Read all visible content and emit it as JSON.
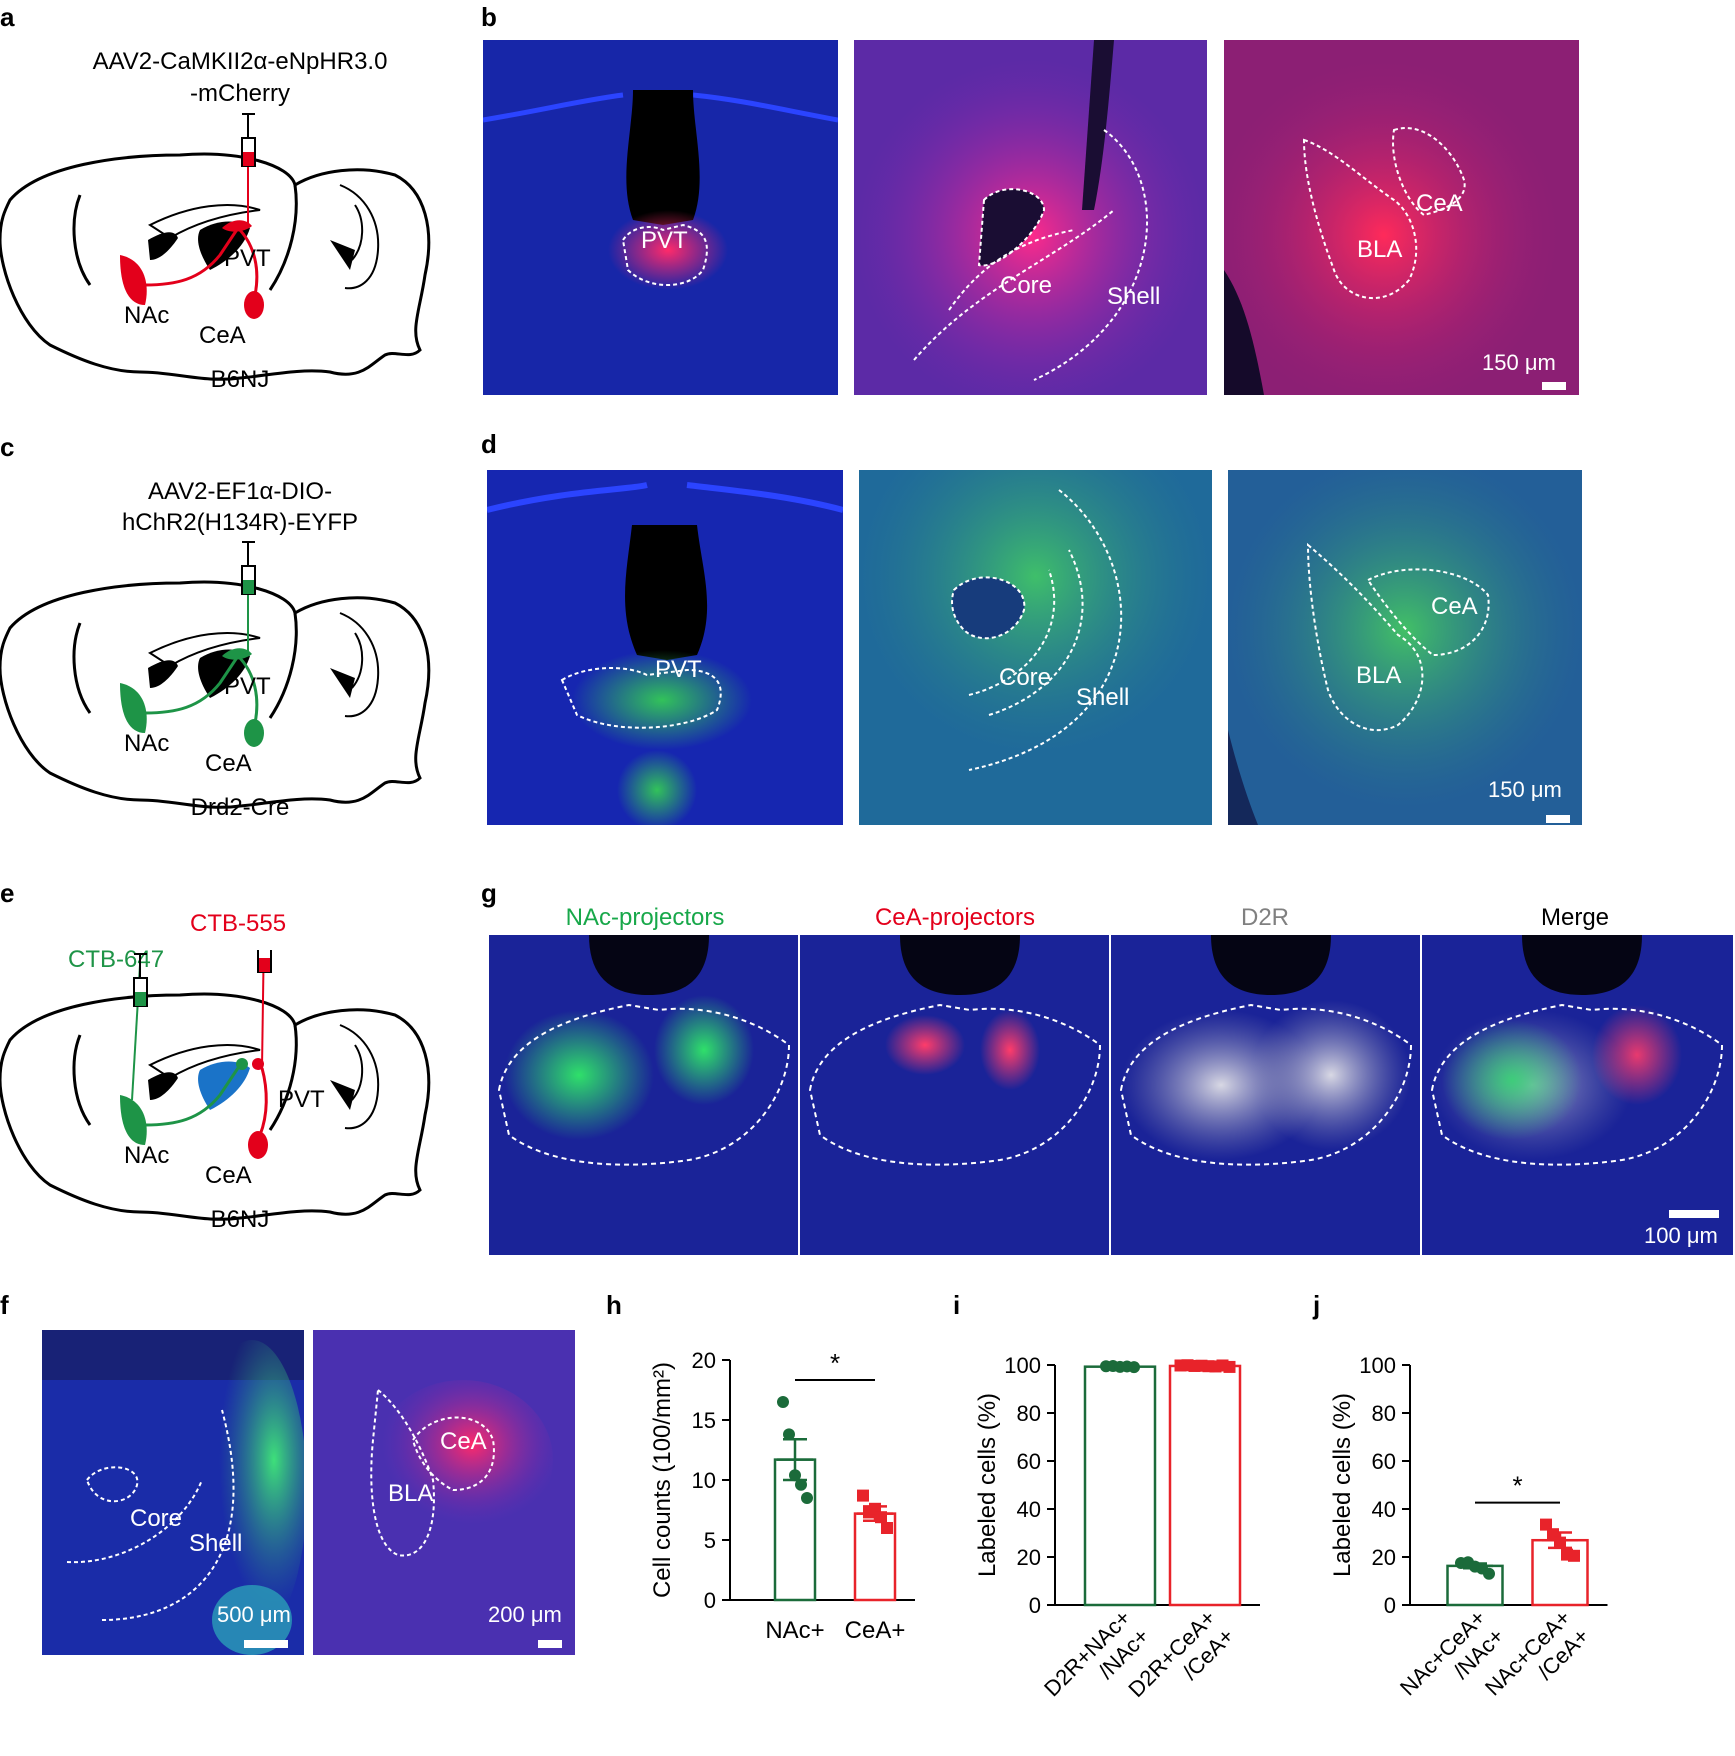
{
  "panels": {
    "a": {
      "letter": "a",
      "virus": [
        "AAV2-CaMKII2α-eNpHR3.0",
        "-mCherry"
      ],
      "regions": {
        "pvt": "PVT",
        "nac": "NAc",
        "cea": "CeA"
      },
      "strain": "B6NJ",
      "color": "#e3001b"
    },
    "b": {
      "letter": "b",
      "images": [
        {
          "labels": [
            "PVT"
          ]
        },
        {
          "labels": [
            "Core",
            "Shell"
          ]
        },
        {
          "labels": [
            "CeA",
            "BLA"
          ],
          "scale": "150 μm"
        }
      ]
    },
    "c": {
      "letter": "c",
      "virus": [
        "AAV2-EF1α-DIO-",
        "hChR2(H134R)-EYFP"
      ],
      "regions": {
        "pvt": "PVT",
        "nac": "NAc",
        "cea": "CeA"
      },
      "strain": "Drd2-Cre",
      "color": "#1e9447"
    },
    "d": {
      "letter": "d",
      "images": [
        {
          "labels": [
            "PVT"
          ]
        },
        {
          "labels": [
            "Core",
            "Shell"
          ]
        },
        {
          "labels": [
            "CeA",
            "BLA"
          ],
          "scale": "150 μm"
        }
      ]
    },
    "e": {
      "letter": "e",
      "tracers": {
        "green": "CTB-647",
        "red": "CTB-555"
      },
      "regions": {
        "pvt": "PVT",
        "nac": "NAc",
        "cea": "CeA"
      },
      "strain": "B6NJ"
    },
    "f": {
      "letter": "f",
      "images": [
        {
          "labels": [
            "Core",
            "Shell"
          ],
          "scale": "500 μm"
        },
        {
          "labels": [
            "CeA",
            "BLA"
          ],
          "scale": "200 μm"
        }
      ]
    },
    "g": {
      "letter": "g",
      "headers": [
        {
          "text": "NAc-projectors",
          "color": "#18a84a"
        },
        {
          "text": "CeA-projectors",
          "color": "#e3001b"
        },
        {
          "text": "D2R",
          "color": "#808080"
        },
        {
          "text": "Merge",
          "color": "#000000"
        }
      ],
      "scale": "100 μm"
    },
    "h": {
      "letter": "h",
      "significance": "*"
    },
    "i": {
      "letter": "i"
    },
    "j": {
      "letter": "j",
      "significance": "*"
    }
  },
  "colors": {
    "green": "#1b6b3a",
    "red": "#e8232a",
    "nuclei": "#1525c8"
  },
  "chart_data": [
    {
      "type": "bar",
      "panel": "h",
      "categories": [
        "NAc+",
        "CeA+"
      ],
      "ylabel": "Cell counts (100/mm²)",
      "ylim": [
        0,
        20
      ],
      "yticks": [
        0,
        5,
        10,
        15,
        20
      ],
      "values": [
        11.7,
        7.2
      ],
      "errors": [
        1.7,
        0.6
      ],
      "points": [
        [
          16.5,
          13.8,
          10.4,
          9.6,
          8.5
        ],
        [
          8.7,
          7.3,
          7.6,
          6.9,
          6.0
        ]
      ],
      "colors": [
        "#1b6b3a",
        "#e8232a"
      ],
      "significance": "*"
    },
    {
      "type": "bar",
      "panel": "i",
      "categories": [
        "D2R+NAc+\n/NAc+",
        "D2R+CeA+\n/CeA+"
      ],
      "ylabel": "Labeled cells (%)",
      "ylim": [
        0,
        100
      ],
      "yticks": [
        0,
        20,
        40,
        60,
        80,
        100
      ],
      "values": [
        99.3,
        99.6
      ],
      "errors": [
        0.2,
        0.2
      ],
      "points": [
        [
          99.5,
          99.6,
          99.2,
          99.4,
          99.1
        ],
        [
          99.8,
          99.9,
          99.6,
          99.7,
          99.5,
          99.4,
          99.8,
          99.2
        ]
      ],
      "colors": [
        "#1b6b3a",
        "#e8232a"
      ]
    },
    {
      "type": "bar",
      "panel": "j",
      "categories": [
        "NAc+CeA+\n/NAc+",
        "NAc+CeA+\n/CeA+"
      ],
      "ylabel": "Labeled cells (%)",
      "ylim": [
        0,
        100
      ],
      "yticks": [
        0,
        20,
        40,
        60,
        80,
        100
      ],
      "values": [
        16.3,
        27.0
      ],
      "errors": [
        1.0,
        3.2
      ],
      "points": [
        [
          17.5,
          17.8,
          16.0,
          15.2,
          13.0
        ],
        [
          33.5,
          29.5,
          26.0,
          21.0,
          20.5
        ]
      ],
      "colors": [
        "#1b6b3a",
        "#e8232a"
      ],
      "significance": "*"
    }
  ]
}
